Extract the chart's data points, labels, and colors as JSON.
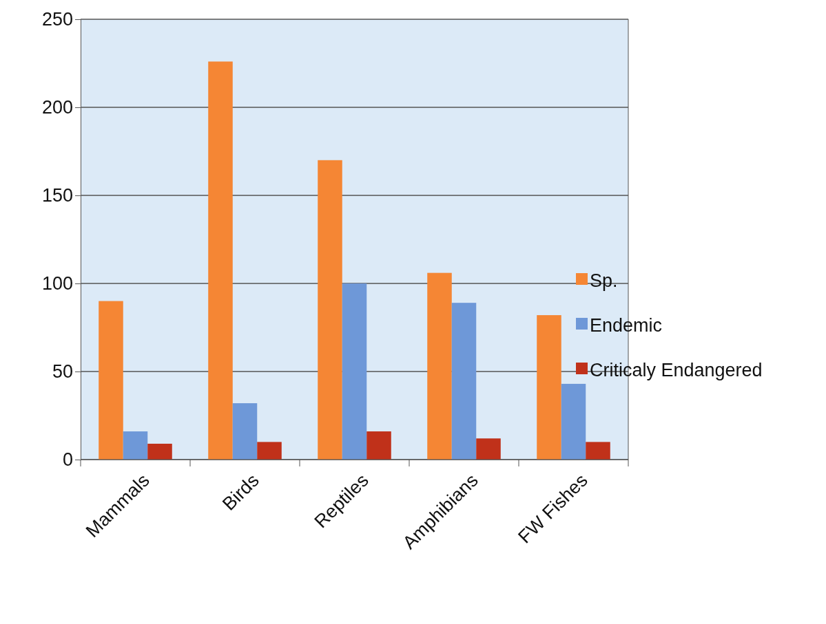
{
  "chart_data": {
    "type": "bar",
    "categories": [
      "Mammals",
      "Birds",
      "Reptiles",
      "Amphibians",
      "FW Fishes"
    ],
    "series": [
      {
        "name": "Sp.",
        "color": "#f58634",
        "values": [
          90,
          226,
          170,
          106,
          82
        ]
      },
      {
        "name": "Endemic",
        "color": "#6e98d8",
        "values": [
          16,
          32,
          100,
          89,
          43
        ]
      },
      {
        "name": "Criticaly Endangered",
        "color": "#c0311a",
        "values": [
          9,
          10,
          16,
          12,
          10
        ]
      }
    ],
    "ylim": [
      0,
      250
    ],
    "yticks": [
      0,
      50,
      100,
      150,
      200,
      250
    ],
    "grid": "y",
    "legend": "right"
  }
}
